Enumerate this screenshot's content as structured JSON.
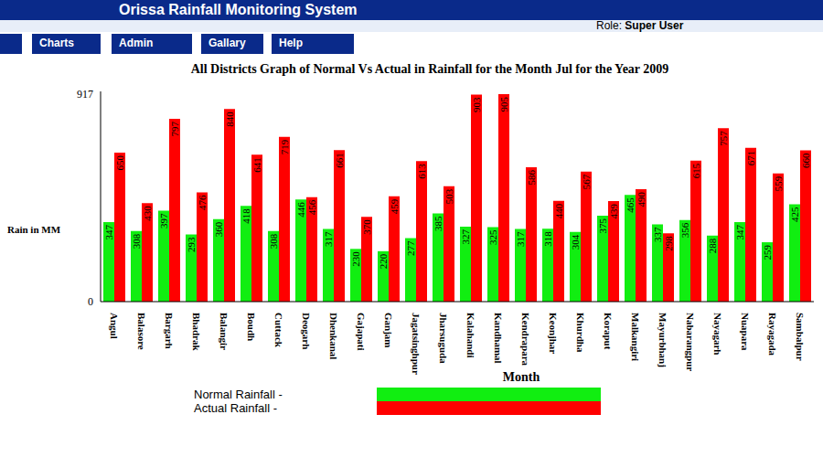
{
  "header": {
    "title": "Orissa Rainfall Monitoring System",
    "role_label": "Role:",
    "role": "Super User"
  },
  "menu": [
    "Charts",
    "Admin",
    "Gallary",
    "Help"
  ],
  "chart_data": {
    "type": "bar",
    "title": "All Districts Graph of Normal Vs Actual in Rainfall for the Month Jul for the Year 2009",
    "y_label": "Rain in MM",
    "x_label": "Month",
    "categories": [
      "Angul",
      "Balasore",
      "Bargarh",
      "Bhadrak",
      "Balangir",
      "Boudh",
      "Cuttack",
      "Deogarh",
      "Dhenkanal",
      "Gajapati",
      "Ganjam",
      "Jagatsinghpur",
      "Jharsuguda",
      "Kalahandi",
      "Kandhamal",
      "Kendrapara",
      "Keonjhar",
      "Khurdha",
      "Koraput",
      "Malkangiri",
      "Mayurbhanj",
      "Nabarangpur",
      "Nayagarh",
      "Nuapara",
      "Rayagada",
      "Sambalpur"
    ],
    "series": [
      {
        "name": "Normal Rainfall -",
        "color": "#11ee11",
        "values": [
          347,
          308,
          397,
          293,
          360,
          418,
          308,
          446,
          317,
          230,
          220,
          277,
          385,
          327,
          325,
          317,
          318,
          304,
          375,
          465,
          337,
          356,
          288,
          347,
          259,
          425
        ]
      },
      {
        "name": "Actual Rainfall -",
        "color": "#ff0000",
        "values": [
          650,
          430,
          797,
          476,
          840,
          641,
          719,
          456,
          661,
          370,
          459,
          613,
          503,
          903,
          905,
          586,
          440,
          567,
          439,
          490,
          298,
          615,
          757,
          671,
          559,
          660
        ]
      }
    ],
    "ylim": [
      0,
      917
    ],
    "yticks": [
      0,
      917
    ],
    "grid": false,
    "legend": "bottom",
    "data_labels": true
  }
}
